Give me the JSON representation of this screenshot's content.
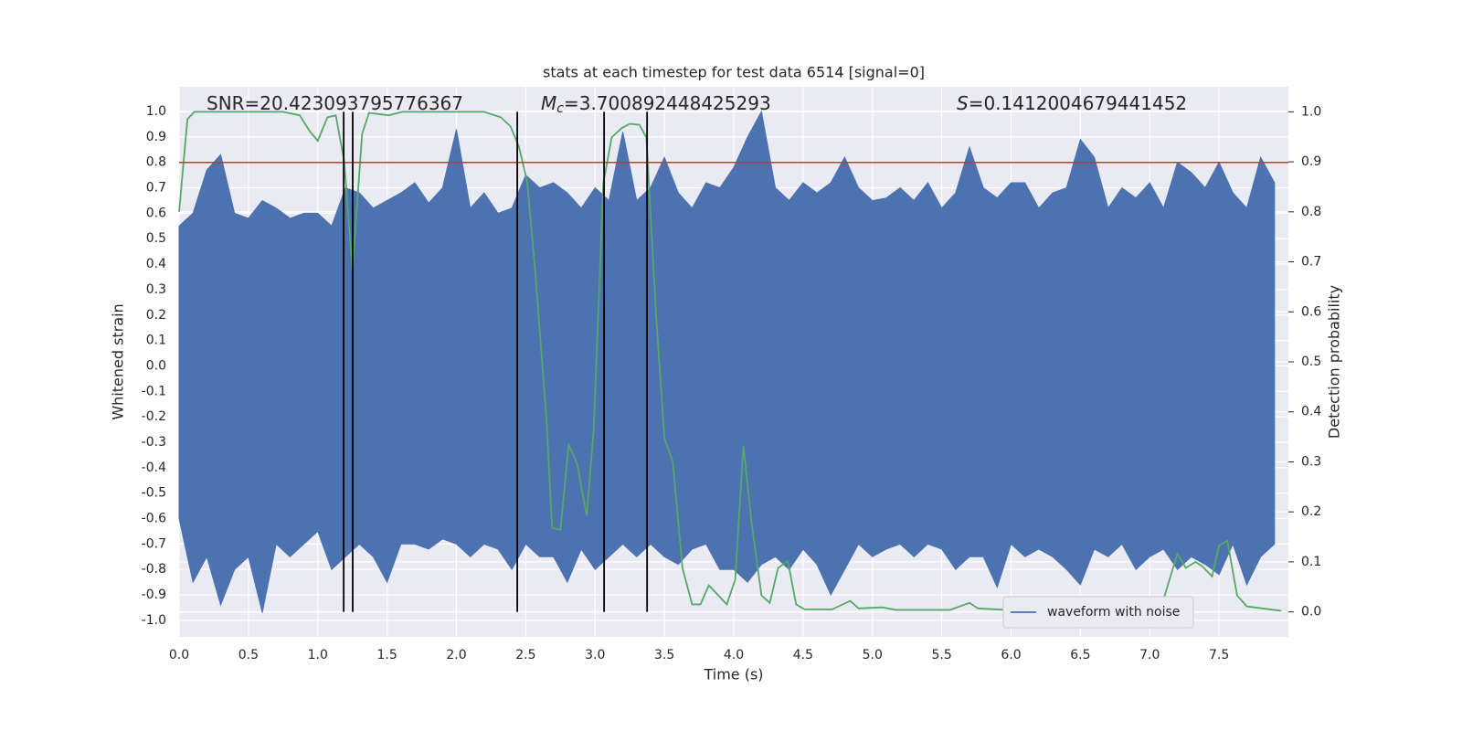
{
  "chart_data": {
    "type": "line",
    "title": "stats at each timestep for test data 6514 [signal=0]",
    "xlabel": "Time (s)",
    "ylabel": "Whitened strain",
    "y2label": "Detection probability",
    "xlim": [
      0,
      8.0
    ],
    "ylim": [
      -1.065,
      1.097
    ],
    "y2lim": [
      -0.05,
      1.05
    ],
    "xticks": [
      {
        "value": 0,
        "label": "0.0"
      },
      0.5,
      {
        "value": 1,
        "label": "1.0"
      },
      1.5,
      {
        "value": 2,
        "label": "2.0"
      },
      2.5,
      {
        "value": 3,
        "label": "3.0"
      },
      3.5,
      {
        "value": 4,
        "label": "4.0"
      },
      4.5,
      {
        "value": 5,
        "label": "5.0"
      },
      5.5,
      {
        "value": 6,
        "label": "6.0"
      },
      6.5,
      {
        "value": 7,
        "label": "7.0"
      },
      7.5
    ],
    "yticks": [
      {
        "value": -1,
        "label": "-1.0"
      },
      -0.9,
      -0.8,
      -0.7,
      -0.6,
      -0.5,
      -0.4,
      -0.3,
      -0.2,
      -0.1,
      {
        "value": 0,
        "label": "0.0"
      },
      0.1,
      0.2,
      0.3,
      0.4,
      0.5,
      0.6,
      0.7,
      0.8,
      0.9,
      {
        "value": 1,
        "label": "1.0"
      }
    ],
    "y2ticks": [
      {
        "value": 0,
        "label": "0.0"
      },
      0.1,
      0.2,
      0.3,
      0.4,
      0.5,
      0.6,
      0.7,
      0.8,
      0.9,
      {
        "value": 1,
        "label": "1.0"
      }
    ],
    "grid": true,
    "legend_loc": "lower right",
    "series": [
      {
        "name": "waveform with noise",
        "type": "envelope",
        "color": "#4c72b0",
        "x": [
          0,
          0.1,
          0.2,
          0.3,
          0.4,
          0.5,
          0.6,
          0.7,
          0.8,
          0.9,
          1,
          1.1,
          1.2,
          1.3,
          1.4,
          1.5,
          1.6,
          1.7,
          1.8,
          1.9,
          2,
          2.1,
          2.2,
          2.3,
          2.4,
          2.5,
          2.6,
          2.7,
          2.8,
          2.9,
          3,
          3.1,
          3.2,
          3.3,
          3.4,
          3.5,
          3.6,
          3.7,
          3.8,
          3.9,
          4,
          4.1,
          4.2,
          4.3,
          4.4,
          4.5,
          4.6,
          4.7,
          4.8,
          4.9,
          5,
          5.1,
          5.2,
          5.3,
          5.4,
          5.5,
          5.6,
          5.7,
          5.8,
          5.9,
          6,
          6.1,
          6.2,
          6.3,
          6.4,
          6.5,
          6.6,
          6.7,
          6.8,
          6.9,
          7,
          7.1,
          7.2,
          7.3,
          7.4,
          7.5,
          7.6,
          7.7,
          7.8,
          7.9
        ],
        "max": [
          0.55,
          0.6,
          0.77,
          0.83,
          0.6,
          0.58,
          0.65,
          0.62,
          0.58,
          0.6,
          0.6,
          0.55,
          0.7,
          0.68,
          0.62,
          0.65,
          0.68,
          0.72,
          0.64,
          0.7,
          0.93,
          0.62,
          0.68,
          0.6,
          0.62,
          0.75,
          0.7,
          0.72,
          0.68,
          0.62,
          0.7,
          0.65,
          0.92,
          0.65,
          0.7,
          0.82,
          0.68,
          0.62,
          0.72,
          0.7,
          0.78,
          0.9,
          1.0,
          0.7,
          0.65,
          0.72,
          0.68,
          0.72,
          0.82,
          0.7,
          0.65,
          0.66,
          0.7,
          0.65,
          0.72,
          0.62,
          0.68,
          0.86,
          0.7,
          0.66,
          0.72,
          0.72,
          0.62,
          0.68,
          0.7,
          0.89,
          0.82,
          0.62,
          0.7,
          0.66,
          0.72,
          0.62,
          0.8,
          0.76,
          0.7,
          0.8,
          0.68,
          0.62,
          0.82,
          0.72
        ],
        "min": [
          -0.6,
          -0.85,
          -0.75,
          -0.94,
          -0.8,
          -0.75,
          -0.97,
          -0.7,
          -0.75,
          -0.7,
          -0.65,
          -0.8,
          -0.75,
          -0.7,
          -0.75,
          -0.85,
          -0.7,
          -0.7,
          -0.72,
          -0.68,
          -0.7,
          -0.75,
          -0.7,
          -0.72,
          -0.8,
          -0.7,
          -0.75,
          -0.75,
          -0.85,
          -0.72,
          -0.8,
          -0.75,
          -0.7,
          -0.75,
          -0.7,
          -0.75,
          -0.78,
          -0.72,
          -0.7,
          -0.8,
          -0.8,
          -0.85,
          -0.78,
          -0.75,
          -0.8,
          -0.72,
          -0.78,
          -0.9,
          -0.8,
          -0.7,
          -0.75,
          -0.72,
          -0.7,
          -0.75,
          -0.7,
          -0.72,
          -0.8,
          -0.75,
          -0.75,
          -0.87,
          -0.7,
          -0.75,
          -0.72,
          -0.75,
          -0.8,
          -0.86,
          -0.72,
          -0.75,
          -0.7,
          -0.8,
          -0.75,
          -0.72,
          -0.8,
          -0.75,
          -0.78,
          -0.82,
          -0.7,
          -0.86,
          -0.75,
          -0.7
        ]
      },
      {
        "type": "line",
        "axis": "y2",
        "color": "#55a868",
        "x": [
          0,
          0.06,
          0.11,
          0.75,
          0.87,
          0.94,
          1.0,
          1.07,
          1.13,
          1.19,
          1.25,
          1.32,
          1.37,
          1.51,
          1.61,
          2.2,
          2.32,
          2.39,
          2.45,
          2.51,
          2.57,
          2.65,
          2.69,
          2.75,
          2.81,
          2.87,
          2.94,
          2.99,
          3.06,
          3.12,
          3.19,
          3.25,
          3.32,
          3.37,
          3.44,
          3.5,
          3.56,
          3.63,
          3.7,
          3.76,
          3.82,
          3.95,
          4.01,
          4.07,
          4.13,
          4.2,
          4.26,
          4.32,
          4.39,
          4.45,
          4.51,
          4.71,
          4.84,
          4.9,
          5.07,
          5.17,
          5.56,
          5.7,
          5.76,
          5.96,
          6.29,
          6.95,
          7.08,
          7.2,
          7.26,
          7.33,
          7.38,
          7.45,
          7.5,
          7.56,
          7.63,
          7.7,
          7.95
        ],
        "values": [
          0.8,
          0.985,
          1.0,
          1.0,
          0.993,
          0.962,
          0.942,
          0.989,
          0.993,
          0.903,
          0.683,
          0.956,
          0.998,
          0.993,
          1.0,
          1.0,
          0.989,
          0.971,
          0.931,
          0.861,
          0.675,
          0.383,
          0.168,
          0.164,
          0.334,
          0.297,
          0.192,
          0.365,
          0.858,
          0.949,
          0.967,
          0.976,
          0.974,
          0.949,
          0.593,
          0.347,
          0.301,
          0.088,
          0.015,
          0.015,
          0.053,
          0.015,
          0.064,
          0.332,
          0.175,
          0.033,
          0.018,
          0.088,
          0.102,
          0.015,
          0.005,
          0.005,
          0.022,
          0.007,
          0.009,
          0.004,
          0.004,
          0.018,
          0.007,
          0.004,
          0.002,
          0.004,
          0.007,
          0.117,
          0.088,
          0.1,
          0.091,
          0.071,
          0.133,
          0.142,
          0.033,
          0.011,
          0.002
        ]
      }
    ],
    "hlines": [
      {
        "y": 0.8,
        "color": "#c0392b"
      }
    ],
    "vlines": {
      "x": [
        1.187,
        1.252,
        2.439,
        3.065,
        3.375
      ],
      "ymin": 0,
      "ymax": 1,
      "axis": "y2",
      "color": "#000000"
    },
    "annotations": [
      {
        "text": "SNR=20.423093795776367"
      },
      {
        "symbol": "M",
        "subscript": "c",
        "text": "=3.700892448425293"
      },
      {
        "symbol": "S",
        "text": "=0.1412004679441452"
      }
    ]
  }
}
